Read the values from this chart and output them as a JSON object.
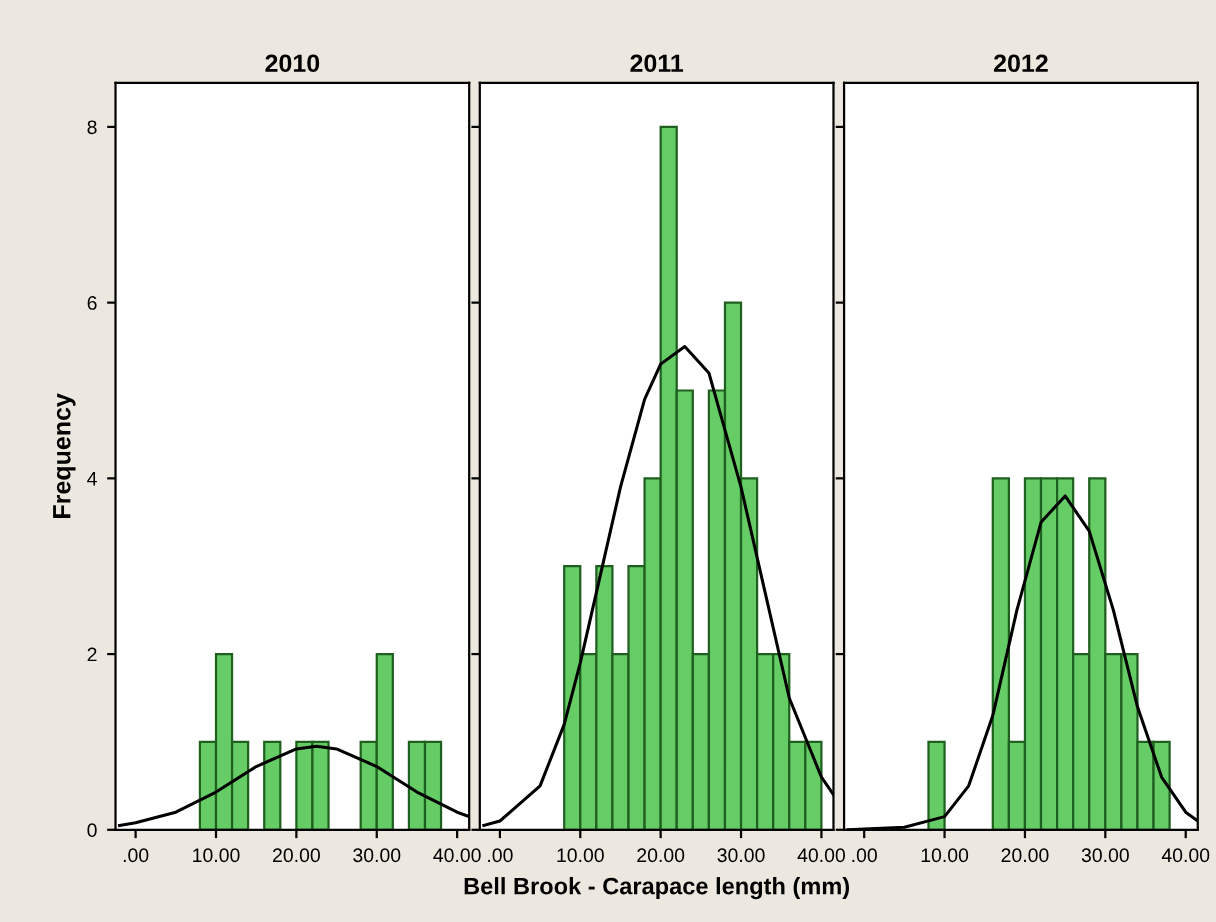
{
  "chart_data": [
    {
      "type": "histogram",
      "title": "2010",
      "ylabel": "Frequency",
      "bins": [
        8,
        10,
        12,
        14,
        16,
        18,
        20,
        22,
        24,
        26,
        28,
        30,
        32,
        34,
        36,
        38,
        40
      ],
      "values": [
        1,
        2,
        1,
        0,
        1,
        0,
        1,
        1,
        0,
        0,
        1,
        2,
        0,
        1,
        1,
        0
      ],
      "color": "#66cc66",
      "series": [
        {
          "type": "line",
          "color": "#000000",
          "x": [
            -2,
            0,
            5,
            10,
            15,
            20,
            22.5,
            25,
            30,
            35,
            40,
            41.5
          ],
          "values": [
            0.05,
            0.08,
            0.2,
            0.43,
            0.72,
            0.92,
            0.95,
            0.92,
            0.72,
            0.43,
            0.2,
            0.15
          ]
        }
      ],
      "xlim": [
        -2.5,
        41.5
      ],
      "ylim": [
        0,
        8.5
      ],
      "xticks": [
        {
          "value": 0,
          "label": ".00"
        },
        {
          "value": 10,
          "label": "10.00"
        },
        {
          "value": 20,
          "label": "20.00"
        },
        {
          "value": 30,
          "label": "30.00"
        },
        {
          "value": 40,
          "label": "40.00"
        }
      ],
      "yticks": [
        0,
        2,
        4,
        6,
        8
      ]
    },
    {
      "type": "histogram",
      "title": "2011",
      "xlabel": "Bell Brook - Carapace length (mm)",
      "bins": [
        8,
        10,
        12,
        14,
        16,
        18,
        20,
        22,
        24,
        26,
        28,
        30,
        32,
        34,
        36,
        38,
        40
      ],
      "values": [
        3,
        2,
        3,
        2,
        3,
        4,
        8,
        5,
        2,
        5,
        6,
        4,
        2,
        2,
        1,
        1
      ],
      "color": "#66cc66",
      "series": [
        {
          "type": "line",
          "color": "#000000",
          "x": [
            -2,
            0,
            5,
            8,
            10,
            12,
            15,
            18,
            20,
            23,
            26,
            30,
            33,
            36,
            40,
            41.5
          ],
          "values": [
            0.05,
            0.1,
            0.5,
            1.2,
            1.9,
            2.7,
            3.9,
            4.9,
            5.3,
            5.5,
            5.2,
            3.9,
            2.7,
            1.5,
            0.6,
            0.4
          ]
        }
      ],
      "xlim": [
        -2.5,
        41.5
      ],
      "ylim": [
        0,
        8.5
      ],
      "xticks": [
        {
          "value": 0,
          "label": ".00"
        },
        {
          "value": 10,
          "label": "10.00"
        },
        {
          "value": 20,
          "label": "20.00"
        },
        {
          "value": 30,
          "label": "30.00"
        },
        {
          "value": 40,
          "label": "40.00"
        }
      ],
      "yticks": [
        0,
        2,
        4,
        6,
        8
      ],
      "tick_labels": "x"
    },
    {
      "type": "histogram",
      "title": "2012",
      "bins": [
        8,
        10,
        12,
        14,
        16,
        18,
        20,
        22,
        24,
        26,
        28,
        30,
        32,
        34,
        36,
        38,
        40
      ],
      "values": [
        1,
        0,
        0,
        0,
        4,
        1,
        4,
        4,
        4,
        2,
        4,
        2,
        2,
        1,
        1,
        0
      ],
      "color": "#66cc66",
      "series": [
        {
          "type": "line",
          "color": "#000000",
          "x": [
            -2,
            0,
            5,
            10,
            13,
            16,
            19,
            22,
            25,
            28,
            31,
            34,
            37,
            40,
            41.5
          ],
          "values": [
            0,
            0.01,
            0.03,
            0.15,
            0.5,
            1.3,
            2.5,
            3.5,
            3.8,
            3.4,
            2.5,
            1.4,
            0.6,
            0.2,
            0.1
          ]
        }
      ],
      "xlim": [
        -2.5,
        41.5
      ],
      "ylim": [
        0,
        8.5
      ],
      "xticks": [
        {
          "value": 0,
          "label": ".00"
        },
        {
          "value": 10,
          "label": "10.00"
        },
        {
          "value": 20,
          "label": "20.00"
        },
        {
          "value": 30,
          "label": "30.00"
        },
        {
          "value": 40,
          "label": "40.00"
        }
      ],
      "yticks": [
        0,
        2,
        4,
        6,
        8
      ],
      "tick_labels": "x"
    }
  ]
}
